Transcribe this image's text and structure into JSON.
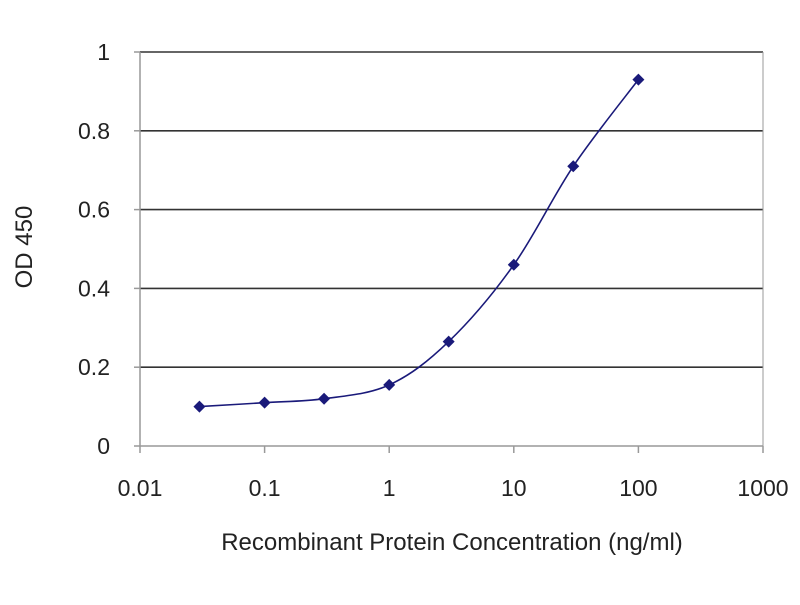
{
  "chart_data": {
    "type": "scatter",
    "x_scale": "log",
    "xlabel": "Recombinant Protein Concentration (ng/ml)",
    "ylabel": "OD 450",
    "xlim": [
      0.01,
      1000
    ],
    "ylim": [
      0,
      1
    ],
    "x_ticks": [
      0.01,
      0.1,
      1,
      10,
      100,
      1000
    ],
    "x_tick_labels": [
      "0.01",
      "0.1",
      "1",
      "10",
      "100",
      "1000"
    ],
    "y_ticks": [
      0,
      0.2,
      0.4,
      0.6,
      0.8,
      1
    ],
    "y_tick_labels": [
      "0",
      "0.2",
      "0.4",
      "0.6",
      "0.8",
      "1"
    ],
    "grid": "horizontal",
    "legend": "none",
    "series": [
      {
        "x": [
          0.03,
          0.1,
          0.3,
          1,
          3,
          10,
          30,
          100
        ],
        "y": [
          0.1,
          0.11,
          0.12,
          0.155,
          0.265,
          0.46,
          0.71,
          0.93
        ],
        "marker": "diamond",
        "line": "smooth"
      }
    ],
    "colors": {
      "series": "#1a1a7a",
      "grid": "#333333",
      "axis": "#999999"
    }
  }
}
